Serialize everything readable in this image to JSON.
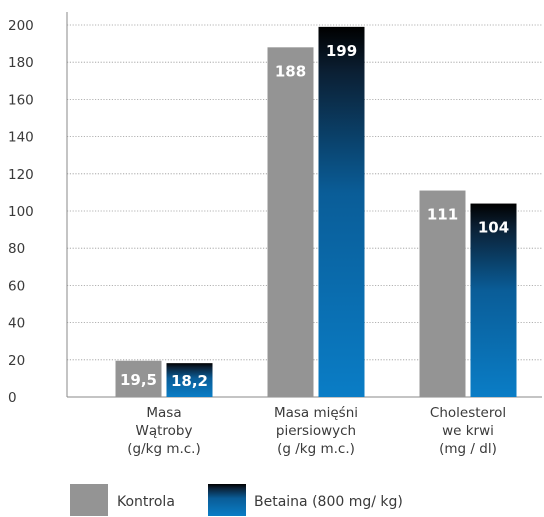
{
  "chart_data": {
    "type": "bar",
    "categories": [
      [
        "Masa",
        "Wątroby",
        "(g/kg m.c.)"
      ],
      [
        "Masa mięśni",
        "piersiowych",
        "(g /kg m.c.)"
      ],
      [
        "Cholesterol",
        "we krwi",
        "(mg / dl)"
      ]
    ],
    "series": [
      {
        "name": "Kontrola",
        "values": [
          19.5,
          188,
          111
        ],
        "labels": [
          "19,5",
          "188",
          "111"
        ],
        "color": "#949494"
      },
      {
        "name": "Betaina (800 mg/ kg)",
        "values": [
          18.2,
          199,
          104
        ],
        "labels": [
          "18,2",
          "199",
          "104"
        ],
        "color_top": "#000000",
        "color_bottom": "#0a7dc6"
      }
    ],
    "ylim": [
      0,
      200
    ],
    "yticks": [
      0,
      20,
      40,
      60,
      80,
      100,
      120,
      140,
      160,
      180,
      200
    ],
    "grid": "horizontal-dotted",
    "legend_position": "bottom"
  }
}
